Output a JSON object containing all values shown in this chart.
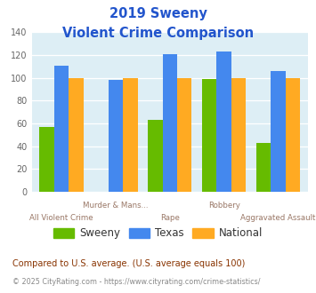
{
  "title_line1": "2019 Sweeny",
  "title_line2": "Violent Crime Comparison",
  "categories": [
    "All Violent Crime",
    "Murder & Mans...",
    "Rape",
    "Robbery",
    "Aggravated Assault"
  ],
  "sweeny": [
    57,
    0,
    63,
    99,
    43
  ],
  "texas": [
    111,
    98,
    121,
    123,
    106
  ],
  "national": [
    100,
    100,
    100,
    100,
    100
  ],
  "sweeny_color": "#66bb00",
  "texas_color": "#4488ee",
  "national_color": "#ffaa22",
  "ylim": [
    0,
    140
  ],
  "yticks": [
    0,
    20,
    40,
    60,
    80,
    100,
    120,
    140
  ],
  "footnote1": "Compared to U.S. average. (U.S. average equals 100)",
  "footnote2": "© 2025 CityRating.com - https://www.cityrating.com/crime-statistics/",
  "bg_color": "#ddeef5",
  "fig_bg": "#ffffff",
  "title_color": "#2255cc",
  "label_color": "#997766",
  "ytick_color": "#666666",
  "footnote1_color": "#883300",
  "footnote2_color": "#888888",
  "legend_text_color": "#333333"
}
